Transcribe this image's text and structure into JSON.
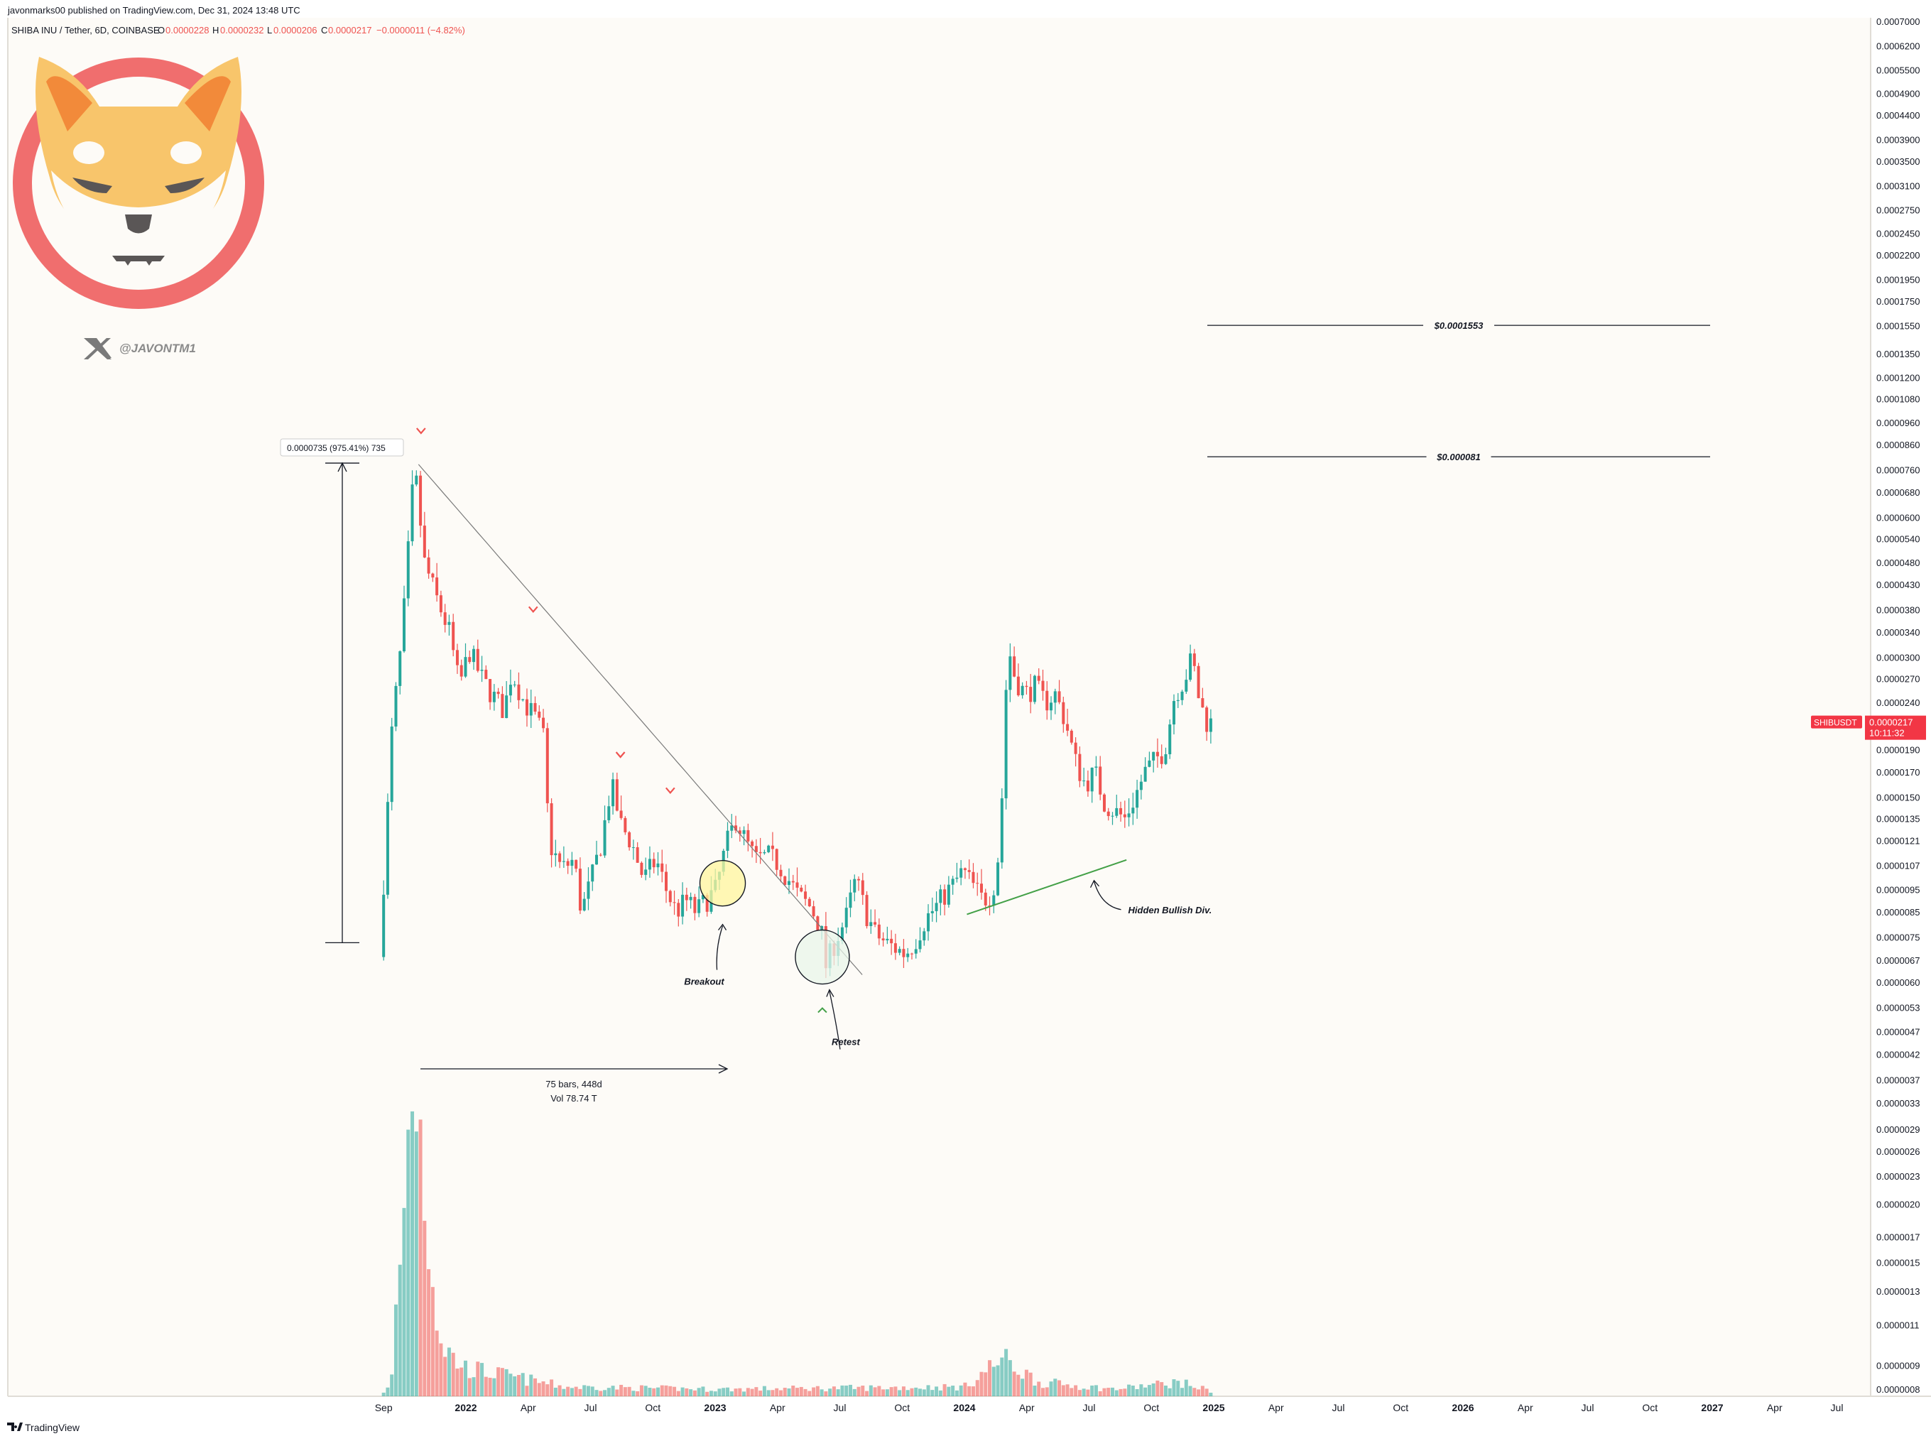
{
  "header": {
    "published": "javonmarks00 published on TradingView.com, Dec 31, 2024 13:48 UTC",
    "symbol": "SHIBA INU / Tether, 6D, COINBASE",
    "o_label": "O",
    "o_value": "0.0000228",
    "h_label": "H",
    "h_value": "0.0000232",
    "l_label": "L",
    "l_value": "0.0000206",
    "c_label": "C",
    "c_value": "0.0000217",
    "change": "−0.0000011 (−4.82%)"
  },
  "logo": {
    "handle": "@JAVONTM1",
    "icon": "x-logo-icon"
  },
  "footer": {
    "brand": "TradingView",
    "icon": "tradingview-logo-icon"
  },
  "price_tag": {
    "symbol": "SHIBUSDT",
    "price": "0.0000217",
    "countdown": "10:11:32"
  },
  "colors": {
    "bull": "#26a69a",
    "bear": "#ef5350",
    "annotation_green": "#43a047",
    "tag": "#f23645",
    "circle_yellow": "#fff59d",
    "circle_green": "#e8f5e9"
  },
  "chart_data": {
    "type": "candlestick",
    "scale": "log",
    "y_ticks": [
      "0.0007000",
      "0.0006200",
      "0.0005500",
      "0.0004900",
      "0.0004400",
      "0.0003900",
      "0.0003500",
      "0.0003100",
      "0.0002750",
      "0.0002450",
      "0.0002200",
      "0.0001950",
      "0.0001750",
      "0.0001550",
      "0.0001350",
      "0.0001200",
      "0.0001080",
      "0.0000960",
      "0.0000860",
      "0.0000760",
      "0.0000680",
      "0.0000600",
      "0.0000540",
      "0.0000480",
      "0.0000430",
      "0.0000380",
      "0.0000340",
      "0.0000300",
      "0.0000270",
      "0.0000240",
      "0.0000190",
      "0.0000170",
      "0.0000150",
      "0.0000135",
      "0.0000121",
      "0.0000107",
      "0.0000095",
      "0.0000085",
      "0.0000075",
      "0.0000067",
      "0.0000060",
      "0.0000053",
      "0.0000047",
      "0.0000042",
      "0.0000037",
      "0.0000033",
      "0.0000029",
      "0.0000026",
      "0.0000023",
      "0.0000020",
      "0.0000017",
      "0.0000015",
      "0.0000013",
      "0.0000011",
      "0.0000009",
      "0.0000008"
    ],
    "x_ticks": [
      {
        "label": "Sep",
        "t": 2021.67,
        "bold": false
      },
      {
        "label": "2022",
        "t": 2022.0,
        "bold": true
      },
      {
        "label": "Apr",
        "t": 2022.25,
        "bold": false
      },
      {
        "label": "Jul",
        "t": 2022.5,
        "bold": false
      },
      {
        "label": "Oct",
        "t": 2022.75,
        "bold": false
      },
      {
        "label": "2023",
        "t": 2023.0,
        "bold": true
      },
      {
        "label": "Apr",
        "t": 2023.25,
        "bold": false
      },
      {
        "label": "Jul",
        "t": 2023.5,
        "bold": false
      },
      {
        "label": "Oct",
        "t": 2023.75,
        "bold": false
      },
      {
        "label": "2024",
        "t": 2024.0,
        "bold": true
      },
      {
        "label": "Apr",
        "t": 2024.25,
        "bold": false
      },
      {
        "label": "Jul",
        "t": 2024.5,
        "bold": false
      },
      {
        "label": "Oct",
        "t": 2024.75,
        "bold": false
      },
      {
        "label": "2025",
        "t": 2025.0,
        "bold": true
      },
      {
        "label": "Apr",
        "t": 2025.25,
        "bold": false
      },
      {
        "label": "Jul",
        "t": 2025.5,
        "bold": false
      },
      {
        "label": "Oct",
        "t": 2025.75,
        "bold": false
      },
      {
        "label": "2026",
        "t": 2026.0,
        "bold": true
      },
      {
        "label": "Apr",
        "t": 2026.25,
        "bold": false
      },
      {
        "label": "Jul",
        "t": 2026.5,
        "bold": false
      },
      {
        "label": "Oct",
        "t": 2026.75,
        "bold": false
      },
      {
        "label": "2027",
        "t": 2027.0,
        "bold": true
      },
      {
        "label": "Apr",
        "t": 2027.25,
        "bold": false
      },
      {
        "label": "Jul",
        "t": 2027.5,
        "bold": false
      }
    ],
    "price_path": [
      [
        2021.67,
        6.8e-06
      ],
      [
        2021.72,
        2.1e-05
      ],
      [
        2021.76,
        3.3e-05
      ],
      [
        2021.81,
        7.8e-05
      ],
      [
        2021.85,
        4.8e-05
      ],
      [
        2021.9,
        4e-05
      ],
      [
        2021.95,
        3.4e-05
      ],
      [
        2021.99,
        2.6e-05
      ],
      [
        2022.03,
        3.1e-05
      ],
      [
        2022.08,
        2.7e-05
      ],
      [
        2022.12,
        2.5e-05
      ],
      [
        2022.17,
        2.3e-05
      ],
      [
        2022.2,
        2.8e-05
      ],
      [
        2022.25,
        2.4e-05
      ],
      [
        2022.3,
        2.2e-05
      ],
      [
        2022.33,
        2e-05
      ],
      [
        2022.35,
        1.2e-05
      ],
      [
        2022.4,
        1.05e-05
      ],
      [
        2022.45,
        1.1e-05
      ],
      [
        2022.48,
        8.5e-06
      ],
      [
        2022.52,
        1e-05
      ],
      [
        2022.56,
        1.2e-05
      ],
      [
        2022.6,
        1.6e-05
      ],
      [
        2022.64,
        1.3e-05
      ],
      [
        2022.68,
        1.2e-05
      ],
      [
        2022.73,
        1e-05
      ],
      [
        2022.78,
        1.1e-05
      ],
      [
        2022.82,
        9.5e-06
      ],
      [
        2022.86,
        8.5e-06
      ],
      [
        2022.9,
        9e-06
      ],
      [
        2022.94,
        8.5e-06
      ],
      [
        2022.98,
        9e-06
      ],
      [
        2023.02,
        9.5e-06
      ],
      [
        2023.06,
        1.18e-05
      ],
      [
        2023.1,
        1.35e-05
      ],
      [
        2023.14,
        1.2e-05
      ],
      [
        2023.18,
        1.1e-05
      ],
      [
        2023.23,
        1.12e-05
      ],
      [
        2023.27,
        1.08e-05
      ],
      [
        2023.31,
        1e-05
      ],
      [
        2023.35,
        9.2e-06
      ],
      [
        2023.4,
        8.7e-06
      ],
      [
        2023.44,
        7.9e-06
      ],
      [
        2023.46,
        6.5e-06
      ],
      [
        2023.5,
        7.4e-06
      ],
      [
        2023.54,
        8.2e-06
      ],
      [
        2023.58,
        1e-05
      ],
      [
        2023.62,
        8.5e-06
      ],
      [
        2023.66,
        7.6e-06
      ],
      [
        2023.7,
        7.3e-06
      ],
      [
        2023.74,
        7.1e-06
      ],
      [
        2023.78,
        6.9e-06
      ],
      [
        2023.82,
        7.4e-06
      ],
      [
        2023.86,
        8.2e-06
      ],
      [
        2023.9,
        8.7e-06
      ],
      [
        2023.94,
        9.3e-06
      ],
      [
        2023.97,
        9.7e-06
      ],
      [
        2024.01,
        1.04e-05
      ],
      [
        2024.05,
        9.7e-06
      ],
      [
        2024.09,
        9e-06
      ],
      [
        2024.13,
        9.4e-06
      ],
      [
        2024.16,
        1.2e-05
      ],
      [
        2024.19,
        3.2e-05
      ],
      [
        2024.22,
        2.7e-05
      ],
      [
        2024.26,
        2.5e-05
      ],
      [
        2024.3,
        2.6e-05
      ],
      [
        2024.34,
        2.4e-05
      ],
      [
        2024.38,
        2.5e-05
      ],
      [
        2024.42,
        2.2e-05
      ],
      [
        2024.46,
        1.8e-05
      ],
      [
        2024.5,
        1.6e-05
      ],
      [
        2024.54,
        1.7e-05
      ],
      [
        2024.58,
        1.45e-05
      ],
      [
        2024.62,
        1.4e-05
      ],
      [
        2024.66,
        1.35e-05
      ],
      [
        2024.7,
        1.5e-05
      ],
      [
        2024.74,
        1.7e-05
      ],
      [
        2024.78,
        1.8e-05
      ],
      [
        2024.82,
        1.9e-05
      ],
      [
        2024.86,
        2.5e-05
      ],
      [
        2024.9,
        2.7e-05
      ],
      [
        2024.93,
        3e-05
      ],
      [
        2024.96,
        2.4e-05
      ],
      [
        2024.99,
        2.17e-05
      ]
    ],
    "volume_profile": [
      [
        2021.67,
        0.01
      ],
      [
        2021.7,
        0.02
      ],
      [
        2021.73,
        0.25
      ],
      [
        2021.76,
        0.45
      ],
      [
        2021.79,
        0.75
      ],
      [
        2021.82,
        0.55
      ],
      [
        2021.84,
        0.42
      ],
      [
        2021.87,
        0.25
      ],
      [
        2021.9,
        0.12
      ],
      [
        2021.95,
        0.08
      ],
      [
        2022.0,
        0.06
      ],
      [
        2022.1,
        0.05
      ],
      [
        2022.2,
        0.04
      ],
      [
        2022.4,
        0.02
      ],
      [
        2023.0,
        0.015
      ],
      [
        2024.0,
        0.02
      ],
      [
        2024.15,
        0.08
      ],
      [
        2024.3,
        0.03
      ],
      [
        2024.6,
        0.015
      ],
      [
        2024.86,
        0.03
      ],
      [
        2025.0,
        0.01
      ]
    ],
    "annotations": {
      "levels": [
        {
          "label": "$0.0001553",
          "price": 0.0001553
        },
        {
          "label": "$0.000081",
          "price": 8.1e-05
        }
      ],
      "range_label": "0.0000735 (975.41%) 735",
      "bars_label": "75 bars, 448d",
      "vol_label": "Vol 78.74 T",
      "breakout": "Breakout",
      "retest": "Retest",
      "hidden_div": "Hidden Bullish Div."
    }
  }
}
